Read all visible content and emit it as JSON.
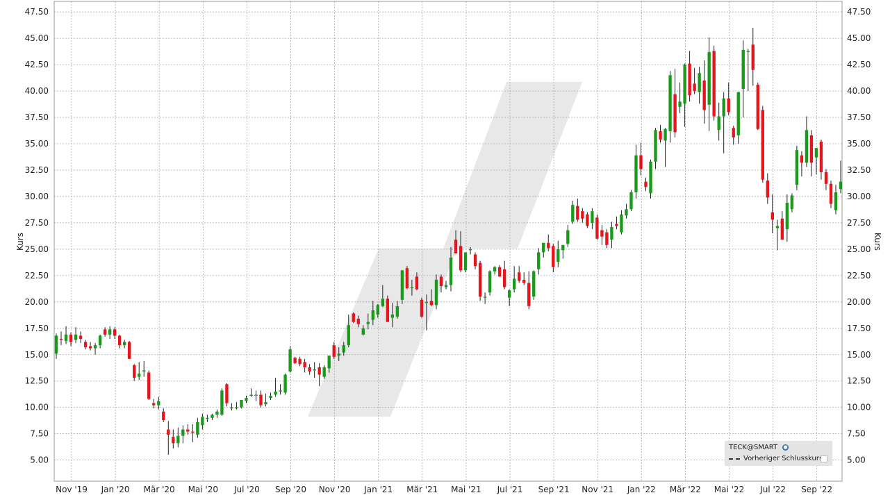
{
  "chart_data": {
    "type": "candlestick",
    "ylabel_left": "Kurs",
    "ylabel_right": "Kurs",
    "ylim": [
      3.0,
      48.5
    ],
    "y_ticks": [
      "5.00",
      "7.50",
      "10.00",
      "12.50",
      "15.00",
      "17.50",
      "20.00",
      "22.50",
      "25.00",
      "27.50",
      "30.00",
      "32.50",
      "35.00",
      "37.50",
      "40.00",
      "42.50",
      "45.00",
      "47.50"
    ],
    "x_ticks": [
      "Nov '19",
      "Jan '20",
      "Mär '20",
      "Mai '20",
      "Jul '20",
      "Sep '20",
      "Nov '20",
      "Jan '21",
      "Mär '21",
      "Mai '21",
      "Jul '21",
      "Sep '21",
      "Nov '21",
      "Jan '22",
      "Mär '22",
      "Mai '22",
      "Jul '22",
      "Sep '22"
    ],
    "grid": true,
    "legend_position": "bottom-right",
    "up_color": "#1a9a1a",
    "down_color": "#e8141c",
    "candles": [
      {
        "o": 15.1,
        "h": 17.0,
        "l": 14.6,
        "c": 16.8
      },
      {
        "o": 16.5,
        "h": 17.2,
        "l": 15.9,
        "c": 16.4
      },
      {
        "o": 16.3,
        "h": 17.7,
        "l": 16.0,
        "c": 16.9
      },
      {
        "o": 16.9,
        "h": 17.1,
        "l": 15.8,
        "c": 16.2
      },
      {
        "o": 16.4,
        "h": 17.6,
        "l": 16.1,
        "c": 16.9
      },
      {
        "o": 16.8,
        "h": 17.2,
        "l": 16.1,
        "c": 16.5
      },
      {
        "o": 16.2,
        "h": 16.4,
        "l": 15.5,
        "c": 15.7
      },
      {
        "o": 15.8,
        "h": 16.2,
        "l": 15.4,
        "c": 15.6
      },
      {
        "o": 15.6,
        "h": 16.1,
        "l": 15.0,
        "c": 15.9
      },
      {
        "o": 15.9,
        "h": 16.9,
        "l": 15.6,
        "c": 16.8
      },
      {
        "o": 17.4,
        "h": 17.6,
        "l": 16.7,
        "c": 16.9
      },
      {
        "o": 16.9,
        "h": 17.7,
        "l": 16.5,
        "c": 17.4
      },
      {
        "o": 17.4,
        "h": 17.6,
        "l": 16.5,
        "c": 16.8
      },
      {
        "o": 16.8,
        "h": 16.9,
        "l": 15.6,
        "c": 15.9
      },
      {
        "o": 15.9,
        "h": 16.4,
        "l": 15.6,
        "c": 16.2
      },
      {
        "o": 16.2,
        "h": 16.3,
        "l": 14.6,
        "c": 14.6
      },
      {
        "o": 14.0,
        "h": 14.1,
        "l": 12.5,
        "c": 12.8
      },
      {
        "o": 12.9,
        "h": 14.3,
        "l": 12.6,
        "c": 13.2
      },
      {
        "o": 13.4,
        "h": 14.4,
        "l": 12.9,
        "c": 13.5
      },
      {
        "o": 13.3,
        "h": 13.5,
        "l": 10.7,
        "c": 10.8
      },
      {
        "o": 10.4,
        "h": 10.8,
        "l": 9.9,
        "c": 10.2
      },
      {
        "o": 10.2,
        "h": 11.0,
        "l": 9.8,
        "c": 10.6
      },
      {
        "o": 9.6,
        "h": 9.9,
        "l": 8.6,
        "c": 8.8
      },
      {
        "o": 7.9,
        "h": 8.7,
        "l": 5.5,
        "c": 7.4
      },
      {
        "o": 7.2,
        "h": 7.9,
        "l": 6.1,
        "c": 6.6
      },
      {
        "o": 6.6,
        "h": 8.1,
        "l": 6.2,
        "c": 7.3
      },
      {
        "o": 7.3,
        "h": 8.3,
        "l": 6.6,
        "c": 7.9
      },
      {
        "o": 7.9,
        "h": 8.4,
        "l": 7.4,
        "c": 7.7
      },
      {
        "o": 7.7,
        "h": 8.4,
        "l": 6.7,
        "c": 7.6
      },
      {
        "o": 7.4,
        "h": 9.0,
        "l": 7.1,
        "c": 8.6
      },
      {
        "o": 8.3,
        "h": 9.4,
        "l": 7.9,
        "c": 9.1
      },
      {
        "o": 9.0,
        "h": 9.3,
        "l": 8.6,
        "c": 9.0
      },
      {
        "o": 9.0,
        "h": 9.4,
        "l": 8.8,
        "c": 9.3
      },
      {
        "o": 9.3,
        "h": 9.8,
        "l": 9.0,
        "c": 9.6
      },
      {
        "o": 9.3,
        "h": 11.8,
        "l": 9.2,
        "c": 11.6
      },
      {
        "o": 12.2,
        "h": 12.3,
        "l": 10.1,
        "c": 10.4
      },
      {
        "o": 10.0,
        "h": 10.4,
        "l": 9.7,
        "c": 10.0
      },
      {
        "o": 10.0,
        "h": 10.5,
        "l": 9.8,
        "c": 10.0
      },
      {
        "o": 10.0,
        "h": 10.7,
        "l": 9.9,
        "c": 10.7
      },
      {
        "o": 10.6,
        "h": 11.1,
        "l": 10.4,
        "c": 10.9
      },
      {
        "o": 11.2,
        "h": 11.8,
        "l": 11.0,
        "c": 11.2
      },
      {
        "o": 11.2,
        "h": 11.6,
        "l": 10.6,
        "c": 11.2
      },
      {
        "o": 11.2,
        "h": 11.6,
        "l": 10.0,
        "c": 10.2
      },
      {
        "o": 10.3,
        "h": 11.3,
        "l": 10.1,
        "c": 10.5
      },
      {
        "o": 10.9,
        "h": 11.4,
        "l": 10.7,
        "c": 11.1
      },
      {
        "o": 11.2,
        "h": 12.8,
        "l": 11.0,
        "c": 11.5
      },
      {
        "o": 11.6,
        "h": 12.2,
        "l": 11.2,
        "c": 11.6
      },
      {
        "o": 11.4,
        "h": 13.2,
        "l": 11.2,
        "c": 13.1
      },
      {
        "o": 13.4,
        "h": 15.8,
        "l": 13.3,
        "c": 15.5
      },
      {
        "o": 14.7,
        "h": 14.8,
        "l": 14.1,
        "c": 14.2
      },
      {
        "o": 14.6,
        "h": 14.8,
        "l": 13.9,
        "c": 14.1
      },
      {
        "o": 14.3,
        "h": 14.6,
        "l": 13.3,
        "c": 13.8
      },
      {
        "o": 13.8,
        "h": 14.1,
        "l": 13.1,
        "c": 13.4
      },
      {
        "o": 13.6,
        "h": 14.3,
        "l": 12.8,
        "c": 13.6
      },
      {
        "o": 13.8,
        "h": 14.2,
        "l": 12.0,
        "c": 13.1
      },
      {
        "o": 12.9,
        "h": 14.0,
        "l": 12.7,
        "c": 13.8
      },
      {
        "o": 13.7,
        "h": 14.9,
        "l": 13.3,
        "c": 14.9
      },
      {
        "o": 15.9,
        "h": 16.2,
        "l": 14.6,
        "c": 14.8
      },
      {
        "o": 14.9,
        "h": 15.7,
        "l": 14.4,
        "c": 15.1
      },
      {
        "o": 15.2,
        "h": 16.2,
        "l": 14.9,
        "c": 15.9
      },
      {
        "o": 15.9,
        "h": 18.8,
        "l": 15.7,
        "c": 17.8
      },
      {
        "o": 18.9,
        "h": 19.0,
        "l": 18.0,
        "c": 18.1
      },
      {
        "o": 18.4,
        "h": 18.7,
        "l": 17.6,
        "c": 17.9
      },
      {
        "o": 16.9,
        "h": 17.8,
        "l": 16.8,
        "c": 17.5
      },
      {
        "o": 17.9,
        "h": 18.9,
        "l": 17.4,
        "c": 18.1
      },
      {
        "o": 18.3,
        "h": 20.1,
        "l": 17.8,
        "c": 19.2
      },
      {
        "o": 18.8,
        "h": 19.8,
        "l": 18.5,
        "c": 19.7
      },
      {
        "o": 19.6,
        "h": 21.6,
        "l": 19.5,
        "c": 20.3
      },
      {
        "o": 20.3,
        "h": 20.6,
        "l": 18.1,
        "c": 18.1
      },
      {
        "o": 18.5,
        "h": 19.9,
        "l": 17.6,
        "c": 18.8
      },
      {
        "o": 18.6,
        "h": 20.1,
        "l": 18.4,
        "c": 19.6
      },
      {
        "o": 20.2,
        "h": 23.0,
        "l": 19.8,
        "c": 23.0
      },
      {
        "o": 23.2,
        "h": 23.4,
        "l": 21.2,
        "c": 21.3
      },
      {
        "o": 21.3,
        "h": 22.1,
        "l": 20.6,
        "c": 21.4
      },
      {
        "o": 22.4,
        "h": 22.8,
        "l": 21.1,
        "c": 21.2
      },
      {
        "o": 20.2,
        "h": 20.4,
        "l": 18.5,
        "c": 18.6
      },
      {
        "o": 19.9,
        "h": 20.7,
        "l": 17.3,
        "c": 20.0
      },
      {
        "o": 20.1,
        "h": 21.2,
        "l": 19.6,
        "c": 19.7
      },
      {
        "o": 19.7,
        "h": 22.6,
        "l": 19.3,
        "c": 22.1
      },
      {
        "o": 22.4,
        "h": 22.6,
        "l": 20.9,
        "c": 21.5
      },
      {
        "o": 21.4,
        "h": 22.0,
        "l": 21.2,
        "c": 21.6
      },
      {
        "o": 21.6,
        "h": 25.2,
        "l": 21.0,
        "c": 24.2
      },
      {
        "o": 25.9,
        "h": 26.8,
        "l": 25.0,
        "c": 24.6
      },
      {
        "o": 25.3,
        "h": 26.7,
        "l": 22.8,
        "c": 23.0
      },
      {
        "o": 23.0,
        "h": 24.7,
        "l": 22.8,
        "c": 24.7
      },
      {
        "o": 24.9,
        "h": 25.2,
        "l": 24.5,
        "c": 25.0
      },
      {
        "o": 24.5,
        "h": 24.7,
        "l": 23.1,
        "c": 23.4
      },
      {
        "o": 23.7,
        "h": 23.9,
        "l": 20.1,
        "c": 20.5
      },
      {
        "o": 20.5,
        "h": 20.9,
        "l": 19.8,
        "c": 20.5
      },
      {
        "o": 20.9,
        "h": 23.0,
        "l": 20.6,
        "c": 22.9
      },
      {
        "o": 22.9,
        "h": 23.4,
        "l": 22.6,
        "c": 23.3
      },
      {
        "o": 23.3,
        "h": 23.5,
        "l": 22.4,
        "c": 22.4
      },
      {
        "o": 23.1,
        "h": 23.9,
        "l": 21.2,
        "c": 21.4
      },
      {
        "o": 20.4,
        "h": 21.2,
        "l": 19.6,
        "c": 21.1
      },
      {
        "o": 21.2,
        "h": 23.4,
        "l": 20.9,
        "c": 22.2
      },
      {
        "o": 22.8,
        "h": 23.4,
        "l": 21.8,
        "c": 22.0
      },
      {
        "o": 22.1,
        "h": 22.8,
        "l": 21.6,
        "c": 21.8
      },
      {
        "o": 21.8,
        "h": 22.9,
        "l": 19.3,
        "c": 19.6
      },
      {
        "o": 20.5,
        "h": 23.0,
        "l": 20.2,
        "c": 22.9
      },
      {
        "o": 23.1,
        "h": 25.1,
        "l": 22.6,
        "c": 24.7
      },
      {
        "o": 24.7,
        "h": 25.6,
        "l": 24.2,
        "c": 25.6
      },
      {
        "o": 25.6,
        "h": 26.4,
        "l": 24.8,
        "c": 25.1
      },
      {
        "o": 25.3,
        "h": 25.5,
        "l": 22.8,
        "c": 23.3
      },
      {
        "o": 23.8,
        "h": 25.8,
        "l": 23.3,
        "c": 25.0
      },
      {
        "o": 24.9,
        "h": 25.4,
        "l": 24.1,
        "c": 25.4
      },
      {
        "o": 25.5,
        "h": 27.3,
        "l": 25.2,
        "c": 26.8
      },
      {
        "o": 27.6,
        "h": 29.6,
        "l": 27.4,
        "c": 29.2
      },
      {
        "o": 29.1,
        "h": 29.8,
        "l": 27.6,
        "c": 27.8
      },
      {
        "o": 28.6,
        "h": 28.9,
        "l": 27.5,
        "c": 27.9
      },
      {
        "o": 28.3,
        "h": 28.5,
        "l": 27.0,
        "c": 27.2
      },
      {
        "o": 27.5,
        "h": 28.9,
        "l": 26.9,
        "c": 28.6
      },
      {
        "o": 28.0,
        "h": 28.3,
        "l": 25.9,
        "c": 26.0
      },
      {
        "o": 26.8,
        "h": 27.3,
        "l": 25.4,
        "c": 26.2
      },
      {
        "o": 26.6,
        "h": 26.9,
        "l": 25.1,
        "c": 25.4
      },
      {
        "o": 25.9,
        "h": 27.6,
        "l": 25.1,
        "c": 27.1
      },
      {
        "o": 27.4,
        "h": 28.1,
        "l": 26.9,
        "c": 27.2
      },
      {
        "o": 26.6,
        "h": 28.7,
        "l": 26.4,
        "c": 28.3
      },
      {
        "o": 28.2,
        "h": 29.3,
        "l": 27.9,
        "c": 28.8
      },
      {
        "o": 28.8,
        "h": 30.6,
        "l": 28.6,
        "c": 30.4
      },
      {
        "o": 30.4,
        "h": 34.9,
        "l": 29.8,
        "c": 33.9
      },
      {
        "o": 33.9,
        "h": 35.1,
        "l": 32.0,
        "c": 32.6
      },
      {
        "o": 31.4,
        "h": 31.8,
        "l": 30.5,
        "c": 30.9
      },
      {
        "o": 30.3,
        "h": 33.5,
        "l": 29.8,
        "c": 33.3
      },
      {
        "o": 33.3,
        "h": 36.5,
        "l": 32.6,
        "c": 36.3
      },
      {
        "o": 36.2,
        "h": 36.8,
        "l": 35.1,
        "c": 35.4
      },
      {
        "o": 35.3,
        "h": 36.5,
        "l": 32.8,
        "c": 36.4
      },
      {
        "o": 36.2,
        "h": 41.9,
        "l": 35.1,
        "c": 41.5
      },
      {
        "o": 39.7,
        "h": 42.1,
        "l": 35.6,
        "c": 36.1
      },
      {
        "o": 38.5,
        "h": 40.8,
        "l": 37.9,
        "c": 39.0
      },
      {
        "o": 38.8,
        "h": 42.6,
        "l": 36.6,
        "c": 42.5
      },
      {
        "o": 42.6,
        "h": 43.8,
        "l": 39.0,
        "c": 39.6
      },
      {
        "o": 40.7,
        "h": 42.2,
        "l": 39.7,
        "c": 40.0
      },
      {
        "o": 39.9,
        "h": 42.3,
        "l": 38.8,
        "c": 41.7
      },
      {
        "o": 41.0,
        "h": 42.9,
        "l": 36.9,
        "c": 38.2
      },
      {
        "o": 38.7,
        "h": 45.1,
        "l": 36.2,
        "c": 43.7
      },
      {
        "o": 43.8,
        "h": 44.3,
        "l": 37.2,
        "c": 37.6
      },
      {
        "o": 36.3,
        "h": 38.9,
        "l": 35.3,
        "c": 37.6
      },
      {
        "o": 37.6,
        "h": 39.9,
        "l": 34.1,
        "c": 39.3
      },
      {
        "o": 39.3,
        "h": 40.8,
        "l": 37.7,
        "c": 38.0
      },
      {
        "o": 36.5,
        "h": 36.7,
        "l": 34.9,
        "c": 35.6
      },
      {
        "o": 35.8,
        "h": 39.9,
        "l": 35.0,
        "c": 39.9
      },
      {
        "o": 40.2,
        "h": 44.8,
        "l": 37.5,
        "c": 43.9
      },
      {
        "o": 43.7,
        "h": 44.0,
        "l": 40.0,
        "c": 43.8
      },
      {
        "o": 44.4,
        "h": 46.0,
        "l": 40.5,
        "c": 42.0
      },
      {
        "o": 40.6,
        "h": 40.8,
        "l": 36.3,
        "c": 36.4
      },
      {
        "o": 38.2,
        "h": 38.6,
        "l": 31.3,
        "c": 31.6
      },
      {
        "o": 31.5,
        "h": 32.2,
        "l": 29.3,
        "c": 29.9
      },
      {
        "o": 28.5,
        "h": 30.2,
        "l": 26.5,
        "c": 27.8
      },
      {
        "o": 27.0,
        "h": 27.8,
        "l": 24.9,
        "c": 27.2
      },
      {
        "o": 27.9,
        "h": 28.6,
        "l": 26.2,
        "c": 25.9
      },
      {
        "o": 26.9,
        "h": 30.2,
        "l": 25.7,
        "c": 29.4
      },
      {
        "o": 28.8,
        "h": 30.3,
        "l": 28.5,
        "c": 30.1
      },
      {
        "o": 31.1,
        "h": 34.8,
        "l": 30.6,
        "c": 34.4
      },
      {
        "o": 33.9,
        "h": 34.3,
        "l": 31.9,
        "c": 33.2
      },
      {
        "o": 33.2,
        "h": 37.6,
        "l": 32.8,
        "c": 36.3
      },
      {
        "o": 35.8,
        "h": 36.3,
        "l": 31.9,
        "c": 33.2
      },
      {
        "o": 33.7,
        "h": 34.3,
        "l": 32.1,
        "c": 34.6
      },
      {
        "o": 35.2,
        "h": 35.4,
        "l": 31.6,
        "c": 32.3
      },
      {
        "o": 32.3,
        "h": 32.6,
        "l": 30.6,
        "c": 31.2
      },
      {
        "o": 31.2,
        "h": 31.5,
        "l": 28.9,
        "c": 29.3
      },
      {
        "o": 28.7,
        "h": 31.1,
        "l": 28.3,
        "c": 30.4
      },
      {
        "o": 30.7,
        "h": 33.4,
        "l": 30.3,
        "c": 31.4
      }
    ],
    "legend": {
      "title": "TECK@SMART",
      "entries": [
        {
          "label": "Vorheriger Schlusskurs",
          "style": "dashed"
        }
      ]
    }
  }
}
